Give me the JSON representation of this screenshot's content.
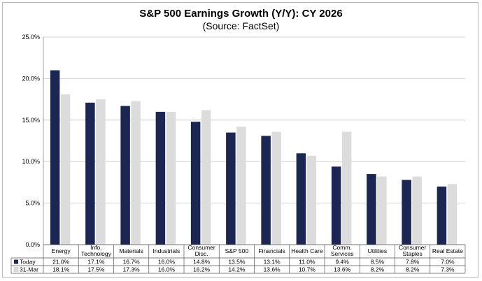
{
  "chart_data": {
    "type": "bar",
    "title": "S&P 500 Earnings Growth (Y/Y): CY 2026",
    "subtitle": "(Source: FactSet)",
    "categories": [
      [
        "Energy"
      ],
      [
        "Info.",
        "Technology"
      ],
      [
        "Materials"
      ],
      [
        "Industrials"
      ],
      [
        "Consumer",
        "Disc."
      ],
      [
        "S&P 500"
      ],
      [
        "Financials"
      ],
      [
        "Health Care"
      ],
      [
        "Comm.",
        "Services"
      ],
      [
        "Utilities"
      ],
      [
        "Consumer",
        "Staples"
      ],
      [
        "Real Estate"
      ]
    ],
    "series": [
      {
        "name": "Today",
        "color": "#1b2653",
        "values": [
          21.0,
          17.1,
          16.7,
          16.0,
          14.8,
          13.5,
          13.1,
          11.0,
          9.4,
          8.5,
          7.8,
          7.0
        ],
        "labels": [
          "21.0%",
          "17.1%",
          "16.7%",
          "16.0%",
          "14.8%",
          "13.5%",
          "13.1%",
          "11.0%",
          "9.4%",
          "8.5%",
          "7.8%",
          "7.0%"
        ]
      },
      {
        "name": "31-Mar",
        "color": "#dcdcdc",
        "values": [
          18.1,
          17.5,
          17.3,
          16.0,
          16.2,
          14.2,
          13.6,
          10.7,
          13.6,
          8.2,
          8.2,
          7.3
        ],
        "labels": [
          "18.1%",
          "17.5%",
          "17.3%",
          "16.0%",
          "16.2%",
          "14.2%",
          "13.6%",
          "10.7%",
          "13.6%",
          "8.2%",
          "8.2%",
          "7.3%"
        ]
      }
    ],
    "ylim": [
      0,
      25
    ],
    "yticks": [
      0,
      5,
      10,
      15,
      20,
      25
    ],
    "ytick_labels": [
      "0.0%",
      "5.0%",
      "10.0%",
      "15.0%",
      "20.0%",
      "25.0%"
    ],
    "grid": true,
    "legend": "data-table"
  }
}
